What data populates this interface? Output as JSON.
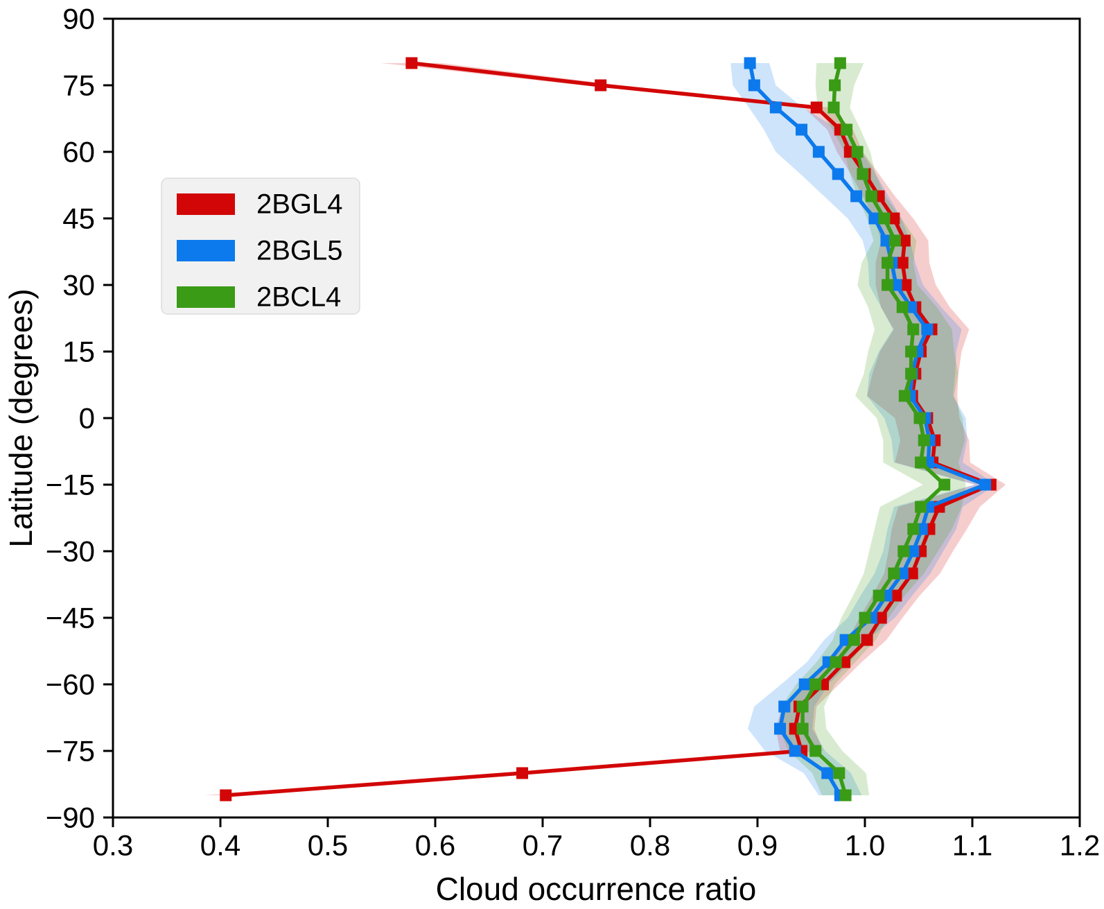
{
  "chart_data": {
    "type": "line",
    "title": "",
    "xlabel": "Cloud occurrence ratio",
    "ylabel": "Latitude (degrees)",
    "xlim": [
      0.3,
      1.2
    ],
    "ylim": [
      -90,
      90
    ],
    "xticks": [
      0.3,
      0.4,
      0.5,
      0.6,
      0.7,
      0.8,
      0.9,
      1.0,
      1.1,
      1.2
    ],
    "yticks": [
      90,
      75,
      60,
      45,
      30,
      15,
      0,
      -15,
      -30,
      -45,
      -60,
      -75,
      -90
    ],
    "grid": false,
    "legend_position": "upper-left-inside",
    "band_opacity": 0.2,
    "latitudes": [
      80,
      75,
      70,
      65,
      60,
      55,
      50,
      45,
      40,
      35,
      30,
      25,
      20,
      15,
      10,
      5,
      0,
      -5,
      -10,
      -15,
      -20,
      -25,
      -30,
      -35,
      -40,
      -45,
      -50,
      -55,
      -60,
      -65,
      -70,
      -75,
      -80,
      -85
    ],
    "series": [
      {
        "name": "2BGL4",
        "color": "#d20606",
        "values": [
          0.578,
          0.754,
          0.955,
          0.977,
          0.986,
          1.0,
          1.013,
          1.027,
          1.037,
          1.035,
          1.038,
          1.047,
          1.062,
          1.052,
          1.047,
          1.044,
          1.058,
          1.065,
          1.063,
          1.117,
          1.069,
          1.06,
          1.052,
          1.044,
          1.029,
          1.015,
          1.002,
          0.981,
          0.961,
          0.939,
          0.935,
          0.941,
          0.681,
          0.405
        ],
        "band_halfwidth": [
          0.028,
          0.018,
          0.012,
          0.012,
          0.012,
          0.013,
          0.015,
          0.018,
          0.022,
          0.025,
          0.028,
          0.032,
          0.035,
          0.038,
          0.04,
          0.042,
          0.03,
          0.032,
          0.035,
          0.014,
          0.038,
          0.035,
          0.03,
          0.026,
          0.022,
          0.02,
          0.018,
          0.016,
          0.015,
          0.016,
          0.018,
          0.02,
          0.018,
          0.02
        ]
      },
      {
        "name": "2BGL5",
        "color": "#0c79ec",
        "values": [
          0.893,
          0.897,
          0.917,
          0.941,
          0.957,
          0.975,
          0.992,
          1.009,
          1.02,
          1.025,
          1.029,
          1.043,
          1.058,
          1.049,
          1.044,
          1.042,
          1.056,
          1.06,
          1.059,
          1.112,
          1.059,
          1.053,
          1.045,
          1.035,
          1.02,
          1.006,
          0.982,
          0.966,
          0.944,
          0.925,
          0.921,
          0.935,
          0.965,
          0.977
        ],
        "band_halfwidth": [
          0.018,
          0.02,
          0.025,
          0.035,
          0.04,
          0.035,
          0.03,
          0.025,
          0.022,
          0.022,
          0.025,
          0.028,
          0.032,
          0.036,
          0.04,
          0.04,
          0.038,
          0.035,
          0.032,
          0.01,
          0.032,
          0.032,
          0.028,
          0.026,
          0.024,
          0.022,
          0.02,
          0.02,
          0.022,
          0.028,
          0.03,
          0.028,
          0.022,
          0.02
        ]
      },
      {
        "name": "2BCL4",
        "color": "#3a9b16",
        "values": [
          0.977,
          0.972,
          0.971,
          0.983,
          0.993,
          0.998,
          1.006,
          1.018,
          1.028,
          1.021,
          1.021,
          1.035,
          1.045,
          1.043,
          1.043,
          1.037,
          1.051,
          1.055,
          1.052,
          1.074,
          1.052,
          1.045,
          1.036,
          1.027,
          1.013,
          1.0,
          0.99,
          0.973,
          0.954,
          0.942,
          0.942,
          0.954,
          0.976,
          0.982
        ],
        "band_halfwidth": [
          0.022,
          0.018,
          0.015,
          0.013,
          0.012,
          0.012,
          0.013,
          0.016,
          0.02,
          0.024,
          0.028,
          0.032,
          0.036,
          0.04,
          0.044,
          0.046,
          0.04,
          0.038,
          0.035,
          0.02,
          0.038,
          0.036,
          0.032,
          0.028,
          0.024,
          0.022,
          0.02,
          0.018,
          0.018,
          0.02,
          0.022,
          0.025,
          0.025,
          0.022
        ]
      }
    ],
    "legend": {
      "labels": [
        "2BGL4",
        "2BGL5",
        "2BCL4"
      ],
      "background": "#f1f1f1",
      "border": "#dcdcdc"
    }
  }
}
